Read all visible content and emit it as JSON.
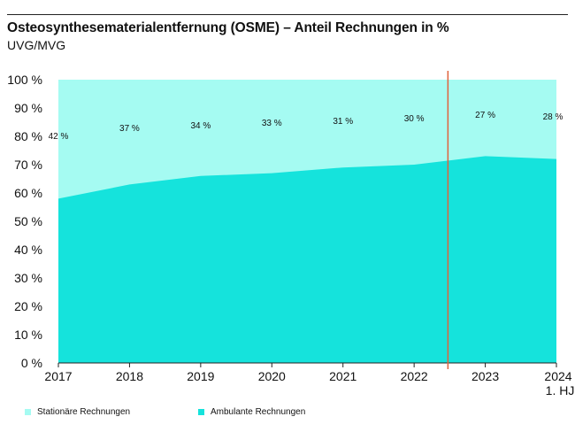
{
  "header": {
    "title": "Osteosynthesematerialentfernung (OSME) – Anteil Rechnungen in %",
    "subtitle": "UVG/MVG"
  },
  "colors": {
    "stationaer": "#a5fbf2",
    "ambulant": "#15e3dc",
    "marker": "#e0623c",
    "axis": "#222222"
  },
  "chart_data": {
    "type": "area",
    "stacked": true,
    "title": "Osteosynthesematerialentfernung (OSME) – Anteil Rechnungen in %",
    "subtitle": "UVG/MVG",
    "x": [
      "2017",
      "2018",
      "2019",
      "2020",
      "2021",
      "2022",
      "2023",
      "2024"
    ],
    "x_sublabels": [
      "",
      "",
      "",
      "",
      "",
      "",
      "",
      "1. HJ"
    ],
    "ylim": [
      0,
      100
    ],
    "yticks": [
      0,
      10,
      20,
      30,
      40,
      50,
      60,
      70,
      80,
      90,
      100
    ],
    "ytick_labels": [
      "0 %",
      "10 %",
      "20 %",
      "30 %",
      "40 %",
      "50 %",
      "60 %",
      "70 %",
      "80 %",
      "90 %",
      "100 %"
    ],
    "series": [
      {
        "name": "Ambulante Rechnungen",
        "values": [
          58,
          63,
          66,
          67,
          69,
          70,
          73,
          72
        ]
      },
      {
        "name": "Stationäre Rechnungen",
        "values": [
          42,
          37,
          34,
          33,
          31,
          30,
          27,
          28
        ]
      }
    ],
    "data_labels": [
      "42 %",
      "37 %",
      "34 %",
      "33 %",
      "31 %",
      "30 %",
      "27 %",
      "28 %"
    ],
    "marker_between": [
      "2022",
      "2023"
    ],
    "legend": [
      "Stationäre Rechnungen",
      "Ambulante Rechnungen"
    ]
  }
}
